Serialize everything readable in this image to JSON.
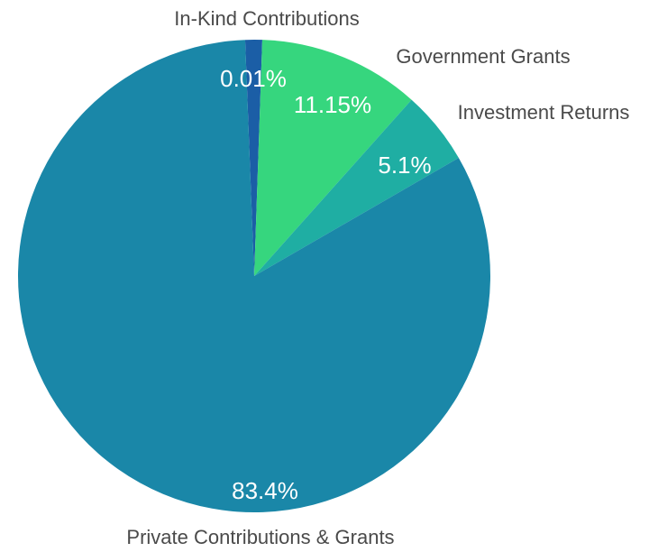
{
  "chart_data": {
    "type": "pie",
    "start_angle_deg": -2.2,
    "slices": [
      {
        "label": "In-Kind Contributions",
        "value": 0.01,
        "display": "0.01%",
        "color": "#1b5ea6"
      },
      {
        "label": "Government Grants",
        "value": 11.15,
        "display": "11.15%",
        "color": "#36d67e"
      },
      {
        "label": "Investment Returns",
        "value": 5.1,
        "display": "5.1%",
        "color": "#1faea3"
      },
      {
        "label": "Private Contributions & Grants",
        "value": 83.4,
        "display": "83.4%",
        "color": "#1a87a8"
      }
    ]
  }
}
